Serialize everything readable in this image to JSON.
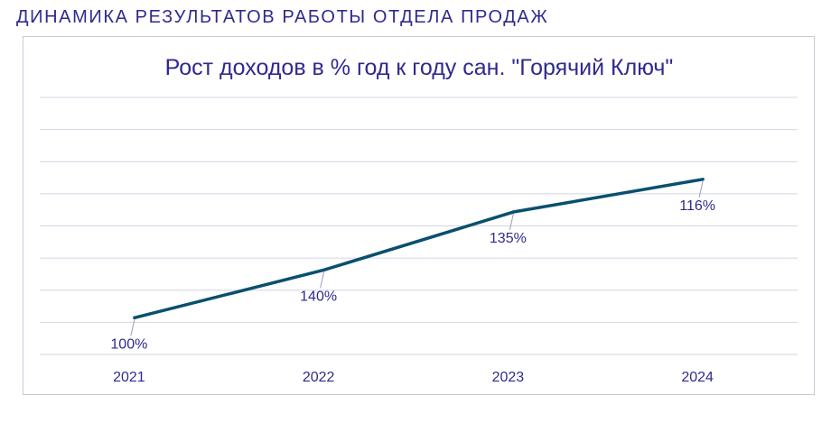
{
  "page": {
    "heading": "ДИНАМИКА РЕЗУЛЬТАТОВ РАБОТЫ ОТДЕЛА ПРОДАЖ"
  },
  "colors": {
    "heading_text": "#302a8e",
    "line": "#08506e",
    "gridline": "#d4d4e4",
    "frame_border": "#c9c9dc"
  },
  "chart_data": {
    "type": "line",
    "title": "Рост доходов в % год к году сан. \"Горячий Ключ\"",
    "xlabel": "",
    "ylabel": "",
    "categories": [
      "2021",
      "2022",
      "2023",
      "2024"
    ],
    "series": [
      {
        "values": [
          100,
          140,
          135,
          116
        ],
        "labels": [
          "100%",
          "140%",
          "135%",
          "116%"
        ]
      }
    ],
    "line_trend_index": [
      1.0,
      2.3,
      3.88,
      4.77
    ],
    "y_axis_visible": false,
    "gridlines": 9,
    "grid": true,
    "legend": "none"
  }
}
